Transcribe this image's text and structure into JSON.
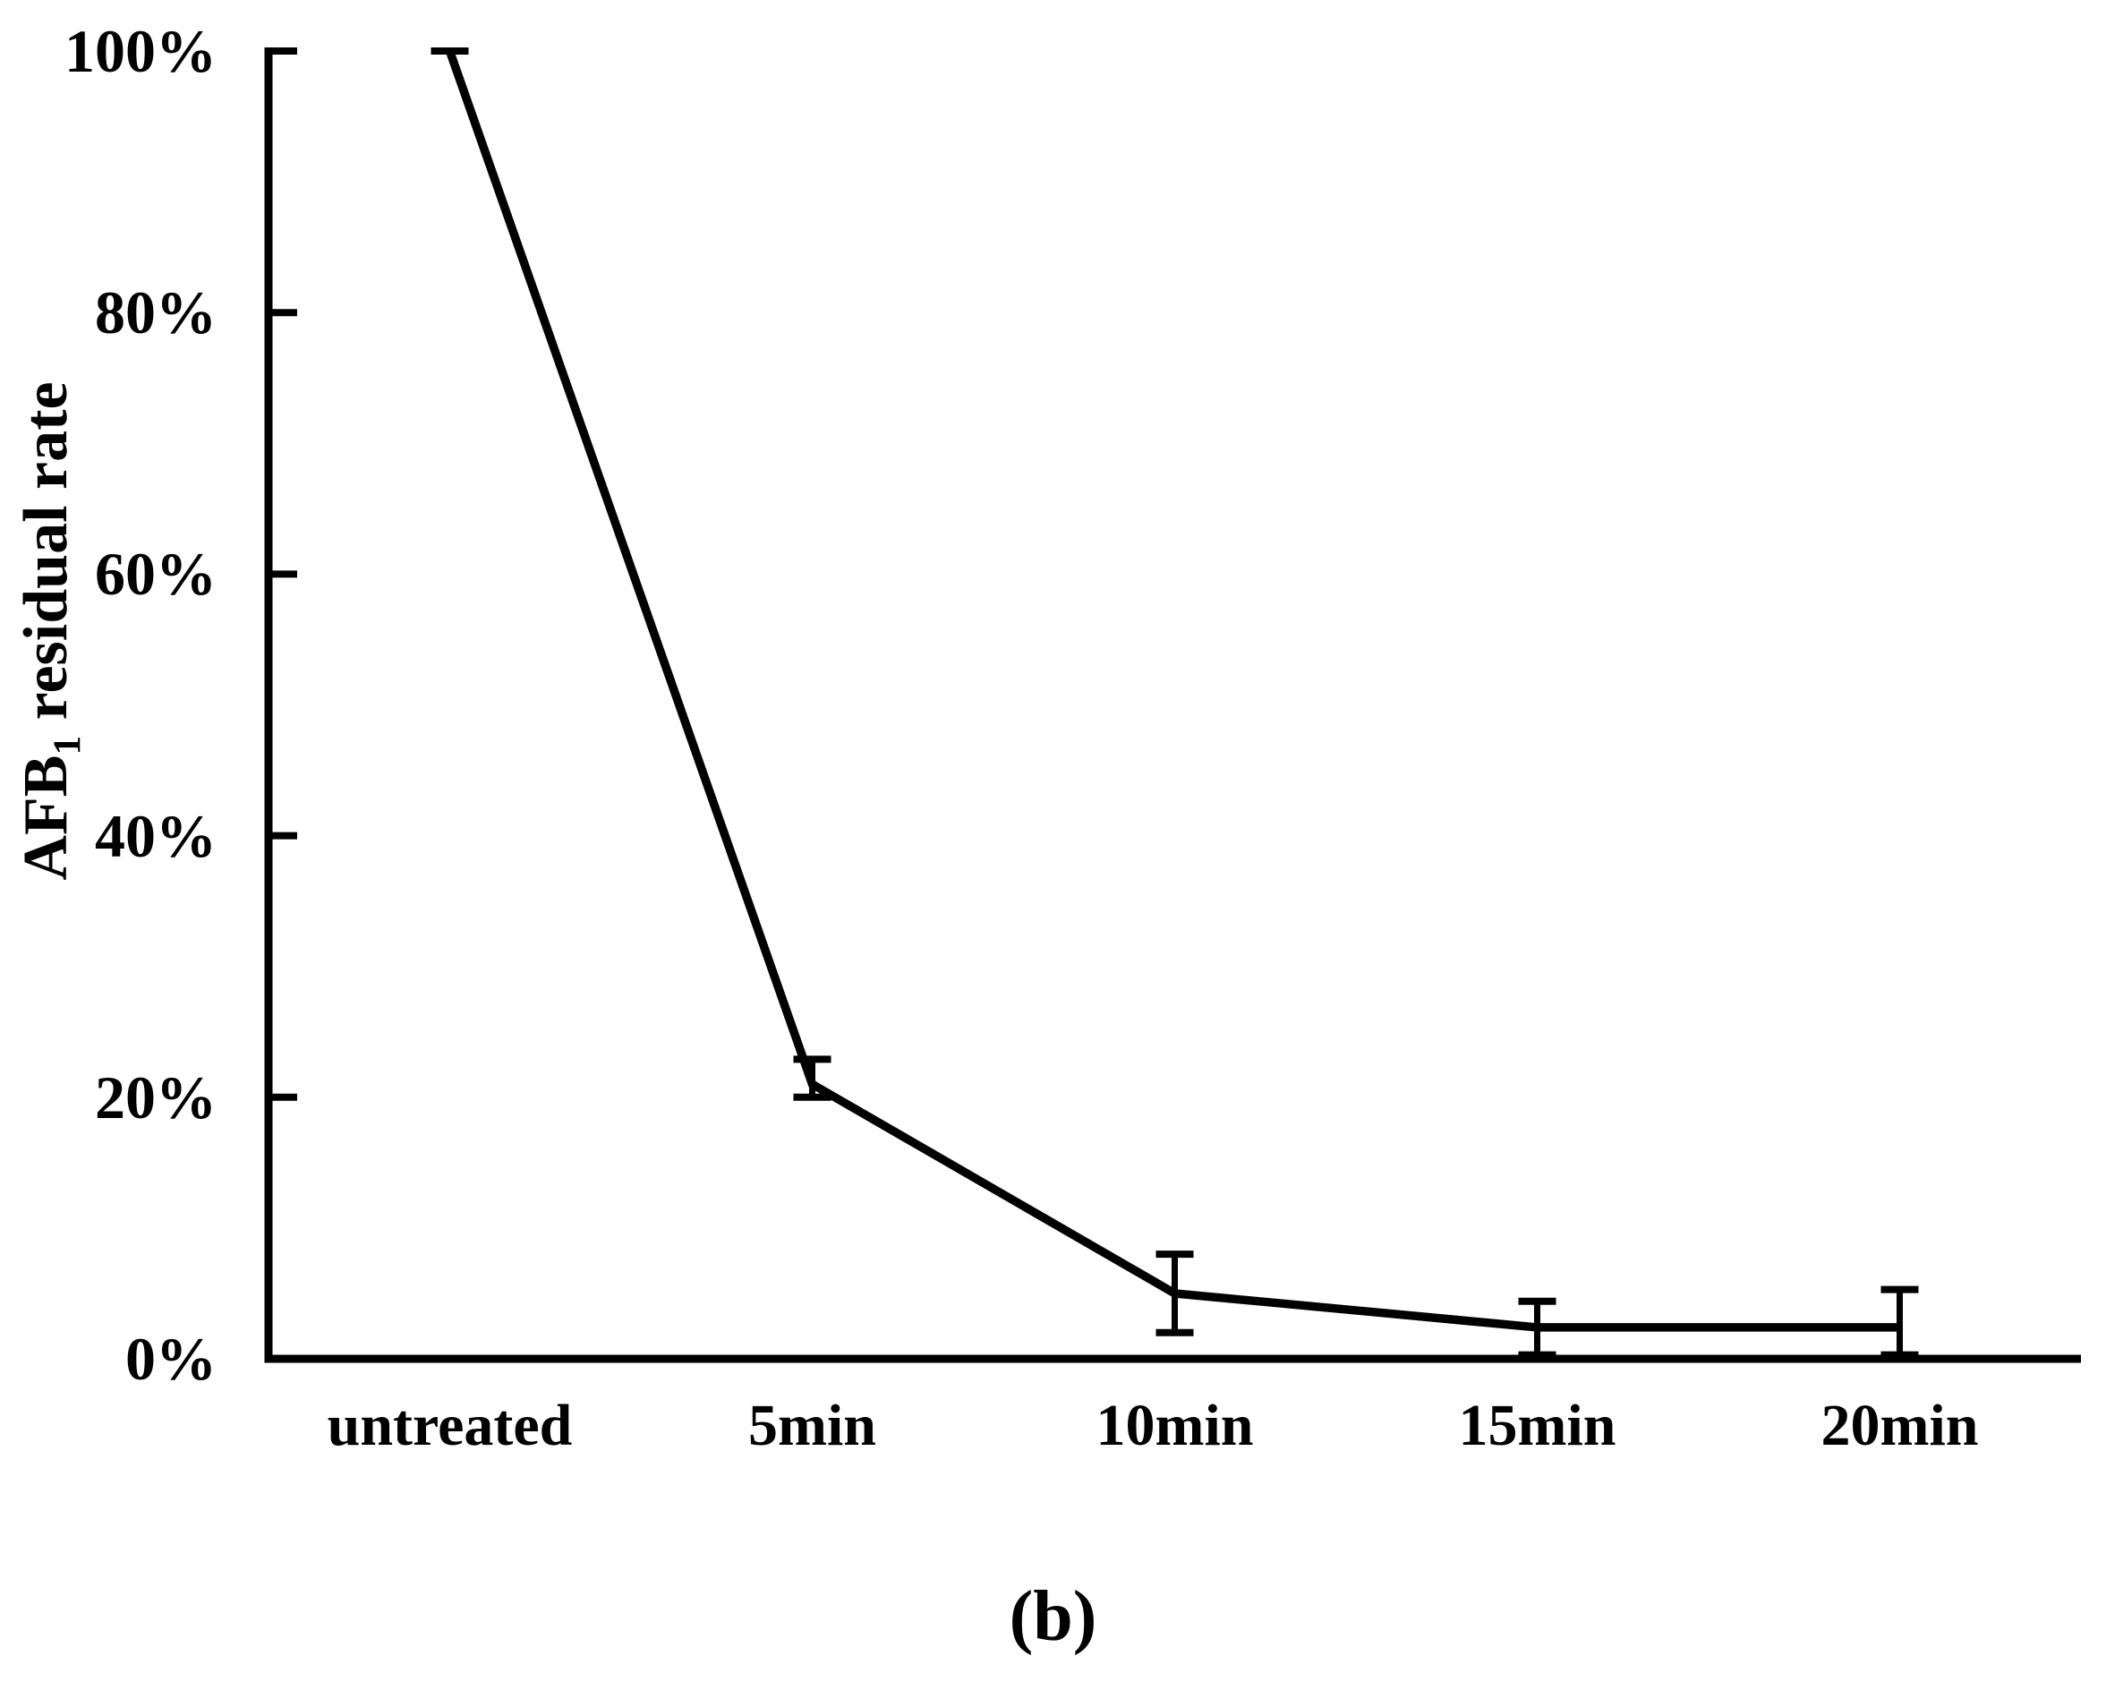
{
  "chart_data": {
    "type": "line",
    "categories": [
      "untreated",
      "5min",
      "10min",
      "15min",
      "20min"
    ],
    "values": [
      100,
      21,
      5,
      2.4,
      2.4
    ],
    "error_up": [
      0,
      1.9,
      3.0,
      2.0,
      2.9
    ],
    "error_down": [
      0,
      1.0,
      3.0,
      2.1,
      2.1
    ],
    "title": "",
    "xlabel": "",
    "ylabel": "AFB₁ residual rate",
    "ylabel_parts": {
      "prefix": "AFB",
      "sub": "1",
      "suffix": " residual rate"
    },
    "ytick_labels": [
      "100%",
      "80%",
      "60%",
      "40%",
      "20%",
      "0%"
    ],
    "ylim": [
      0,
      100
    ],
    "ytick_step": 20,
    "grid": false,
    "legend": "none",
    "line_color": "#000000",
    "background_color": "#ffffff",
    "caption": "(b)"
  }
}
